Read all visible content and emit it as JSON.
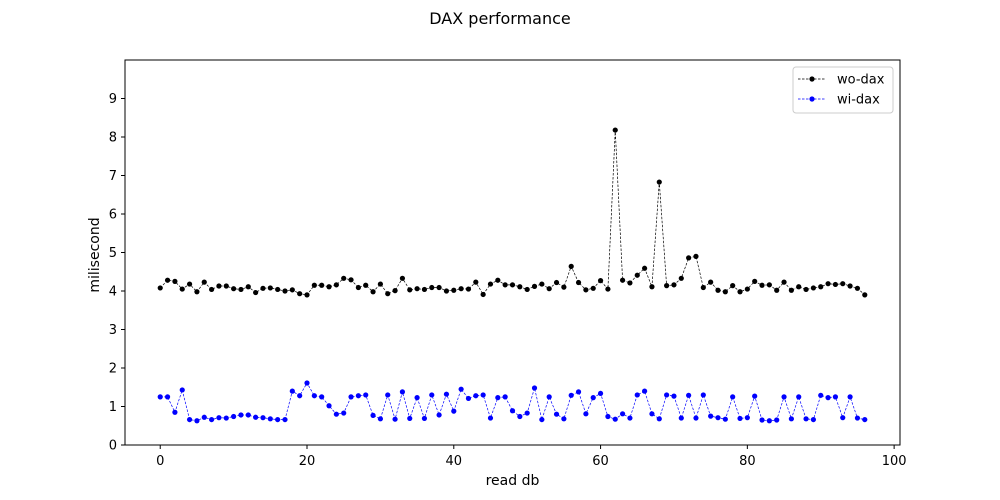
{
  "chart_data": {
    "type": "line",
    "title": "DAX performance",
    "xlabel": "read db",
    "ylabel": "milisecond",
    "xlim": [
      -4.8,
      100.8
    ],
    "ylim": [
      0,
      10
    ],
    "xticks": [
      0,
      20,
      40,
      60,
      80,
      100
    ],
    "yticks": [
      0,
      1,
      2,
      3,
      4,
      5,
      6,
      7,
      8,
      9
    ],
    "legend_position": "top-right",
    "grid": false,
    "x": [
      0,
      1,
      2,
      3,
      4,
      5,
      6,
      7,
      8,
      9,
      10,
      11,
      12,
      13,
      14,
      15,
      16,
      17,
      18,
      19,
      20,
      21,
      22,
      23,
      24,
      25,
      26,
      27,
      28,
      29,
      30,
      31,
      32,
      33,
      34,
      35,
      36,
      37,
      38,
      39,
      40,
      41,
      42,
      43,
      44,
      45,
      46,
      47,
      48,
      49,
      50,
      51,
      52,
      53,
      54,
      55,
      56,
      57,
      58,
      59,
      60,
      61,
      62,
      63,
      64,
      65,
      66,
      67,
      68,
      69,
      70,
      71,
      72,
      73,
      74,
      75,
      76,
      77,
      78,
      79,
      80,
      81,
      82,
      83,
      84,
      85,
      86,
      87,
      88,
      89,
      90,
      91,
      92,
      93,
      94,
      95,
      96
    ],
    "series": [
      {
        "name": "wo-dax",
        "color": "#000000",
        "values": [
          4.08,
          4.28,
          4.25,
          4.05,
          4.18,
          3.98,
          4.23,
          4.04,
          4.13,
          4.13,
          4.06,
          4.04,
          4.11,
          3.96,
          4.07,
          4.08,
          4.04,
          4.0,
          4.03,
          3.93,
          3.9,
          4.15,
          4.15,
          4.11,
          4.16,
          4.33,
          4.29,
          4.09,
          4.15,
          3.98,
          4.18,
          3.93,
          4.01,
          4.33,
          4.03,
          4.06,
          4.04,
          4.09,
          4.09,
          4.0,
          4.02,
          4.06,
          4.05,
          4.23,
          3.91,
          4.18,
          4.28,
          4.16,
          4.16,
          4.11,
          4.04,
          4.12,
          4.18,
          4.06,
          4.22,
          4.1,
          4.64,
          4.22,
          4.03,
          4.07,
          4.27,
          4.05,
          8.18,
          4.28,
          4.21,
          4.41,
          4.59,
          4.11,
          6.83,
          4.14,
          4.16,
          4.33,
          4.86,
          4.9,
          4.09,
          4.23,
          4.02,
          3.98,
          4.14,
          3.98,
          4.05,
          4.25,
          4.15,
          4.16,
          4.02,
          4.23,
          4.02,
          4.11,
          4.04,
          4.08,
          4.11,
          4.19,
          4.17,
          4.19,
          4.13,
          4.07,
          3.9
        ]
      },
      {
        "name": "wi-dax",
        "color": "#0000ff",
        "values": [
          1.25,
          1.25,
          0.85,
          1.43,
          0.66,
          0.63,
          0.72,
          0.66,
          0.71,
          0.7,
          0.74,
          0.78,
          0.78,
          0.72,
          0.71,
          0.68,
          0.66,
          0.66,
          1.4,
          1.28,
          1.61,
          1.28,
          1.25,
          1.02,
          0.8,
          0.83,
          1.25,
          1.28,
          1.3,
          0.77,
          0.68,
          1.3,
          0.67,
          1.38,
          0.69,
          1.23,
          0.69,
          1.3,
          0.78,
          1.32,
          0.88,
          1.45,
          1.21,
          1.28,
          1.3,
          0.7,
          1.23,
          1.25,
          0.89,
          0.74,
          0.83,
          1.48,
          0.66,
          1.25,
          0.8,
          0.68,
          1.29,
          1.38,
          0.81,
          1.23,
          1.34,
          0.74,
          0.67,
          0.81,
          0.7,
          1.3,
          1.4,
          0.81,
          0.68,
          1.3,
          1.27,
          0.7,
          1.29,
          0.7,
          1.3,
          0.75,
          0.71,
          0.67,
          1.25,
          0.69,
          0.71,
          1.27,
          0.65,
          0.63,
          0.65,
          1.25,
          0.68,
          1.25,
          0.68,
          0.66,
          1.29,
          1.23,
          1.25,
          0.71,
          1.25,
          0.7,
          0.66
        ]
      }
    ]
  }
}
